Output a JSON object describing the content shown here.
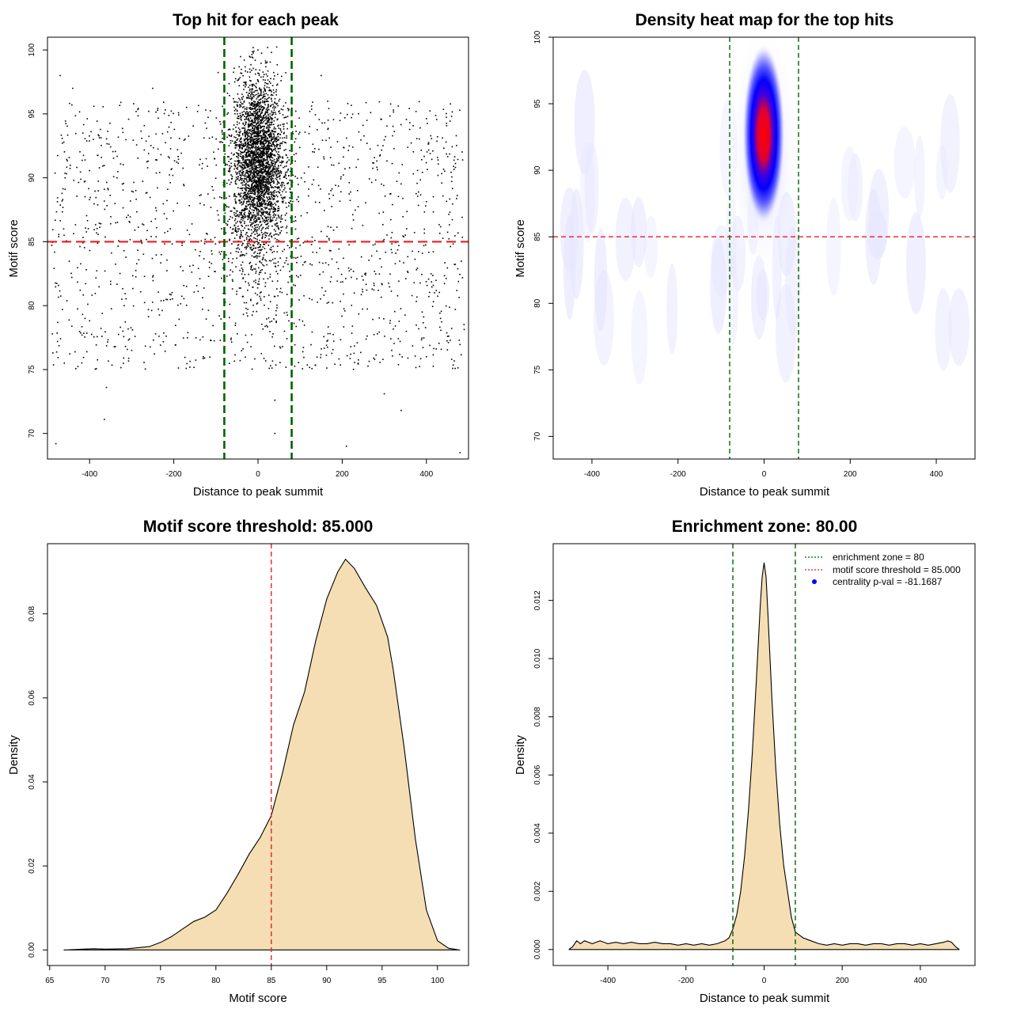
{
  "chart_data": [
    {
      "type": "scatter",
      "title": "Top hit for each peak",
      "xlabel": "Distance to peak summit",
      "ylabel": "Motif score",
      "xlim": [
        -500,
        500
      ],
      "ylim": [
        68,
        101
      ],
      "xticks": [
        -400,
        -200,
        0,
        200,
        400
      ],
      "yticks": [
        70,
        75,
        80,
        85,
        90,
        95,
        100
      ],
      "vlines": [
        -80,
        80
      ],
      "hline": 85,
      "vline_color": "#006400",
      "hline_color": "#ee1c1c",
      "point_color": "#000000",
      "points_sample": [
        [
          -480,
          69.2
        ],
        [
          -360,
          73.6
        ],
        [
          -365,
          71.1
        ],
        [
          40,
          70.0
        ],
        [
          210,
          69.0
        ],
        [
          340,
          71.8
        ],
        [
          480,
          68.5
        ],
        [
          -470,
          98.0
        ],
        [
          -440,
          97.0
        ],
        [
          150,
          98.0
        ],
        [
          -20,
          99.5
        ],
        [
          0,
          100.0
        ],
        [
          20,
          99.0
        ],
        [
          -250,
          97.0
        ],
        [
          -130,
          76.0
        ],
        [
          -80,
          72.0
        ],
        [
          40,
          72.6
        ],
        [
          300,
          73.1
        ],
        [
          -300,
          76.5
        ],
        [
          -460,
          75.5
        ],
        [
          400,
          76.0
        ],
        [
          460,
          75.8
        ]
      ]
    },
    {
      "type": "heatmap",
      "title": "Density heat map for the top hits",
      "xlabel": "Distance to peak summit",
      "ylabel": "Motif score",
      "xlim": [
        -490,
        490
      ],
      "ylim": [
        68.3,
        100
      ],
      "xticks": [
        -400,
        -200,
        0,
        200,
        400
      ],
      "yticks": [
        70,
        75,
        80,
        85,
        90,
        95,
        100
      ],
      "vlines": [
        -80,
        80
      ],
      "hline": 85,
      "peak": {
        "x": 0,
        "y": 92.5
      },
      "colors": {
        "low": "#ffffff",
        "mid": "#0000ff",
        "high": "#ff0000"
      }
    },
    {
      "type": "area",
      "title": "Motif score threshold: 85.000",
      "xlabel": "Motif score",
      "ylabel": "Density",
      "xlim": [
        64.8,
        102.8
      ],
      "ylim": [
        -0.0037,
        0.0967
      ],
      "xticks": [
        65,
        70,
        75,
        80,
        85,
        90,
        95,
        100
      ],
      "yticks": [
        0.0,
        0.02,
        0.04,
        0.06,
        0.08
      ],
      "ytick_labels": [
        "0.00",
        "0.02",
        "0.04",
        "0.06",
        "0.08"
      ],
      "vline": 85,
      "fill": "#f5deb3",
      "x": [
        66.3,
        68,
        69,
        70,
        72,
        74,
        75,
        76,
        77,
        78,
        79,
        80,
        81,
        82,
        83,
        84,
        85,
        86,
        87,
        88,
        89,
        90,
        91,
        91.7,
        92.5,
        93.5,
        94.5,
        95.5,
        96,
        97,
        98,
        99,
        100,
        101,
        102
      ],
      "y": [
        0,
        0.0002,
        0.0003,
        0.0002,
        0.0003,
        0.0008,
        0.0018,
        0.0032,
        0.005,
        0.0068,
        0.0078,
        0.0095,
        0.0135,
        0.018,
        0.0228,
        0.0268,
        0.032,
        0.042,
        0.0535,
        0.0614,
        0.0735,
        0.0835,
        0.09,
        0.093,
        0.0908,
        0.0862,
        0.082,
        0.0745,
        0.0668,
        0.048,
        0.0265,
        0.0095,
        0.0022,
        0.0004,
        0
      ]
    },
    {
      "type": "area",
      "title": "Enrichment zone: 80.00",
      "xlabel": "Distance to peak summit",
      "ylabel": "Density",
      "xlim": [
        -540,
        540
      ],
      "ylim": [
        -0.00055,
        0.01395
      ],
      "xticks": [
        -400,
        -200,
        0,
        200,
        400
      ],
      "yticks": [
        0.0,
        0.002,
        0.004,
        0.006,
        0.008,
        0.01,
        0.012
      ],
      "ytick_labels": [
        "0.000",
        "0.002",
        "0.004",
        "0.006",
        "0.008",
        "0.010",
        "0.012"
      ],
      "vlines": [
        -80,
        80
      ],
      "fill": "#f5deb3",
      "x": [
        -500,
        -490,
        -480,
        -470,
        -460,
        -440,
        -420,
        -400,
        -380,
        -360,
        -340,
        -320,
        -300,
        -280,
        -260,
        -240,
        -220,
        -200,
        -180,
        -160,
        -140,
        -120,
        -100,
        -90,
        -80,
        -70,
        -60,
        -50,
        -40,
        -30,
        -20,
        -10,
        -5,
        0,
        5,
        10,
        20,
        30,
        40,
        50,
        60,
        70,
        80,
        90,
        100,
        120,
        140,
        160,
        180,
        200,
        220,
        240,
        260,
        280,
        300,
        320,
        340,
        360,
        380,
        400,
        420,
        440,
        460,
        470,
        480,
        490,
        500
      ],
      "y": [
        0,
        0.0001,
        0.0003,
        0.0002,
        0.0003,
        0.0002,
        0.0003,
        0.0002,
        0.00025,
        0.0002,
        0.00025,
        0.0002,
        0.0002,
        0.00025,
        0.0002,
        0.0002,
        0.00015,
        0.0002,
        0.00015,
        0.0002,
        0.00015,
        0.0002,
        0.0003,
        0.0004,
        0.0007,
        0.0012,
        0.002,
        0.0032,
        0.0048,
        0.0068,
        0.0092,
        0.0118,
        0.0128,
        0.0133,
        0.0128,
        0.0115,
        0.0086,
        0.0062,
        0.0043,
        0.0029,
        0.002,
        0.0011,
        0.0006,
        0.0005,
        0.0004,
        0.0003,
        0.0002,
        0.00015,
        0.0002,
        0.00015,
        0.0002,
        0.0002,
        0.00015,
        0.0002,
        0.0002,
        0.00015,
        0.0002,
        0.0002,
        0.00015,
        0.0002,
        0.00015,
        0.0002,
        0.00025,
        0.0003,
        0.00025,
        0.0001,
        0
      ],
      "legend": {
        "position": "top-right",
        "entries": [
          {
            "label": "enrichment zone = 80",
            "color": "#006400",
            "style": "dotted-line"
          },
          {
            "label": "motif score threshold = 85.000",
            "color": "#ee1c1c",
            "style": "dotted-line"
          },
          {
            "label": "centrality p-val = -81.1687",
            "color": "#0000ff",
            "style": "dot"
          }
        ]
      }
    }
  ]
}
